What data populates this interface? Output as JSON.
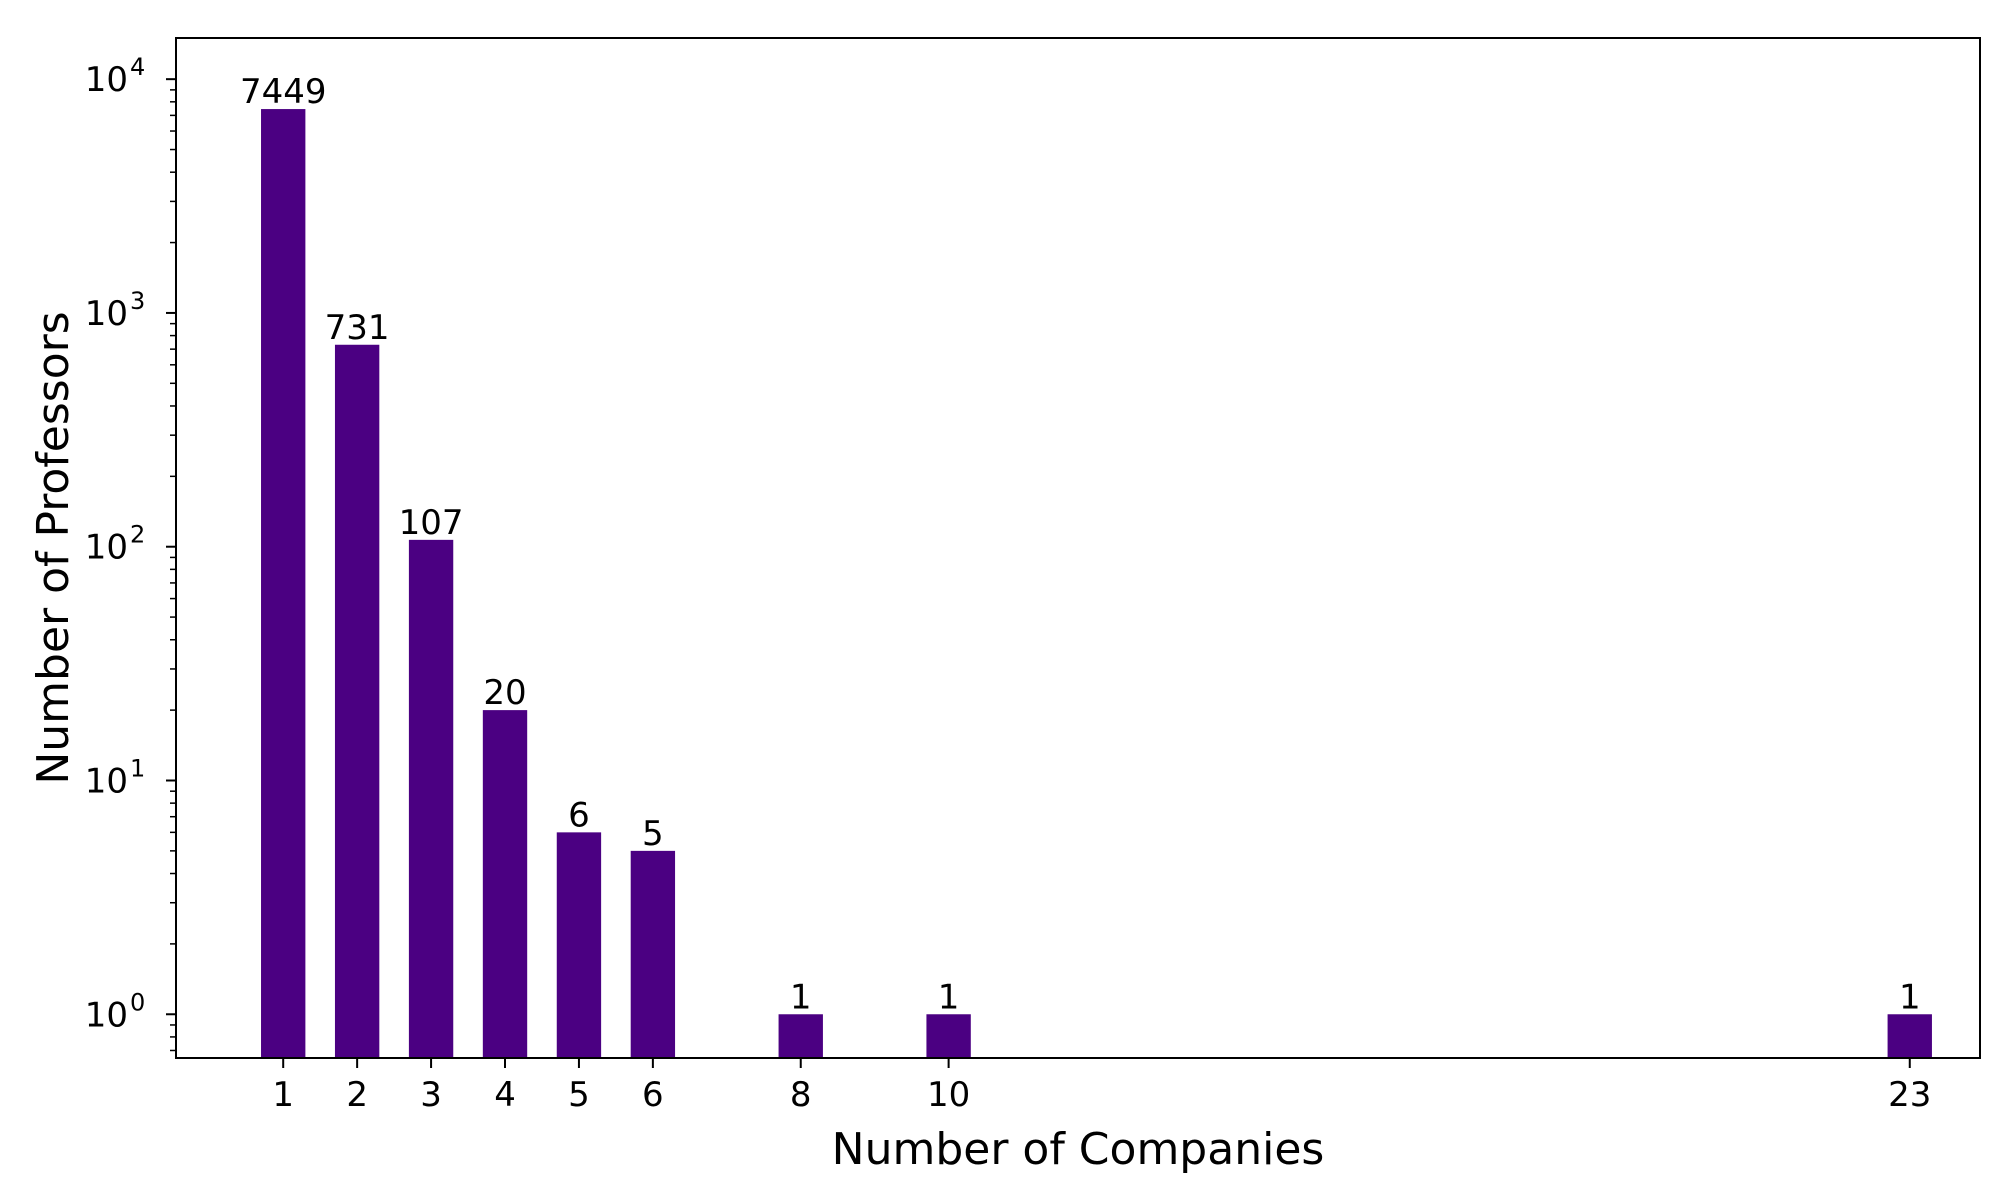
{
  "chart_data": {
    "type": "bar",
    "xlabel": "Number of Companies",
    "ylabel": "Number of Professors",
    "yscale": "log",
    "ylim": [
      0.65,
      15000
    ],
    "xlim": [
      -0.45,
      23.95
    ],
    "bar_color": "#4b0082",
    "x": [
      1,
      2,
      3,
      4,
      5,
      6,
      8,
      10,
      23
    ],
    "values": [
      7449,
      731,
      107,
      20,
      6,
      5,
      1,
      1,
      1
    ],
    "value_labels": [
      "7449",
      "731",
      "107",
      "20",
      "6",
      "5",
      "1",
      "1",
      "1"
    ],
    "x_tick_labels": [
      "1",
      "2",
      "3",
      "4",
      "5",
      "6",
      "8",
      "10",
      "23"
    ],
    "y_ticks": [
      {
        "value": 1,
        "base": "10",
        "exp": "0"
      },
      {
        "value": 10,
        "base": "10",
        "exp": "1"
      },
      {
        "value": 100,
        "base": "10",
        "exp": "2"
      },
      {
        "value": 1000,
        "base": "10",
        "exp": "3"
      },
      {
        "value": 10000,
        "base": "10",
        "exp": "4"
      }
    ]
  }
}
